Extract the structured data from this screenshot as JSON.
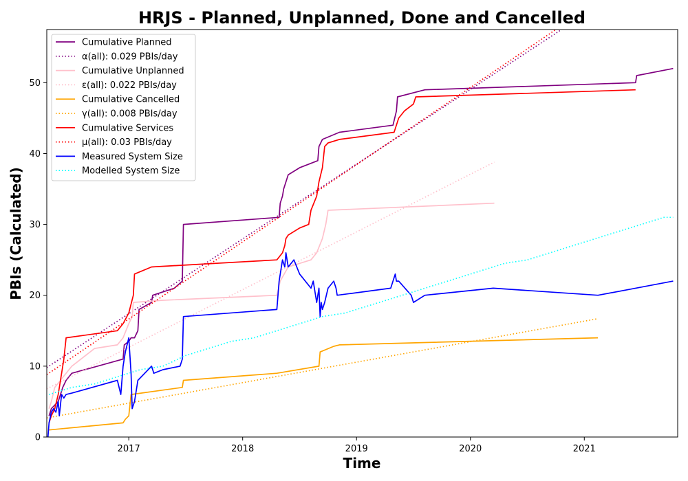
{
  "chart_data": {
    "type": "line",
    "title": "HRJS - Planned, Unplanned, Done  and Cancelled",
    "xlabel": "Time",
    "ylabel": "PBIs (Calculated)",
    "xlim": [
      2016.28,
      2021.82
    ],
    "ylim": [
      0,
      57.5
    ],
    "x_ticks": [
      2017,
      2018,
      2019,
      2020,
      2021
    ],
    "y_ticks": [
      0,
      10,
      20,
      30,
      40,
      50
    ],
    "grid": false,
    "legend_position": "top-left",
    "series": [
      {
        "name": "Cumulative Planned",
        "color": "#800080",
        "style": "solid",
        "x": [
          2016.3,
          2016.32,
          2016.35,
          2016.38,
          2016.4,
          2016.42,
          2016.45,
          2016.5,
          2016.95,
          2016.96,
          2017.0,
          2017.02,
          2017.05,
          2017.08,
          2017.09,
          2017.2,
          2017.21,
          2017.4,
          2017.47,
          2017.48,
          2018.32,
          2018.33,
          2018.35,
          2018.36,
          2018.4,
          2018.5,
          2018.66,
          2018.67,
          2018.7,
          2018.85,
          2019.32,
          2019.35,
          2019.36,
          2019.6,
          2021.45,
          2021.46,
          2021.78
        ],
        "y": [
          3,
          4,
          4.5,
          5,
          6,
          7,
          8,
          9,
          11,
          13,
          13.5,
          14,
          14,
          15,
          18,
          19,
          20,
          21,
          22,
          30,
          31,
          33,
          34,
          35,
          37,
          38,
          39,
          41,
          42,
          43,
          44,
          46,
          48,
          49,
          50,
          51,
          52
        ]
      },
      {
        "name": "α(all): 0.029 PBIs/day",
        "color": "#800080",
        "style": "dotted",
        "x": [
          2016.28,
          2020.8
        ],
        "y": [
          9.8,
          57.5
        ]
      },
      {
        "name": "Cumulative Unplanned",
        "color": "#ffc0cb",
        "style": "solid",
        "x": [
          2016.3,
          2016.32,
          2016.35,
          2016.4,
          2016.45,
          2016.5,
          2016.7,
          2016.9,
          2016.95,
          2017.0,
          2017.03,
          2017.04,
          2017.3,
          2018.3,
          2018.33,
          2018.4,
          2018.6,
          2018.65,
          2018.7,
          2018.73,
          2018.74,
          2018.75,
          2020.21
        ],
        "y": [
          4,
          5,
          7,
          8,
          9,
          10,
          12.5,
          13,
          14,
          16,
          17,
          19,
          19.3,
          20,
          22,
          24,
          25,
          26,
          28,
          30,
          31,
          32,
          33
        ]
      },
      {
        "name": "ε(all): 0.022 PBIs/day",
        "color": "#ffc0cb",
        "style": "dotted",
        "x": [
          2016.28,
          2020.21
        ],
        "y": [
          6.8,
          38.8
        ]
      },
      {
        "name": "Cumulative Cancelled",
        "color": "#ffa500",
        "style": "solid",
        "x": [
          2016.3,
          2016.95,
          2016.97,
          2017.0,
          2017.02,
          2017.47,
          2017.48,
          2018.3,
          2018.67,
          2018.68,
          2018.8,
          2018.85,
          2021.12
        ],
        "y": [
          1,
          2,
          2.5,
          3,
          6,
          7,
          8,
          9,
          10,
          12,
          12.8,
          13,
          14
        ]
      },
      {
        "name": "γ(all): 0.008 PBIs/day",
        "color": "#ffa500",
        "style": "dotted",
        "x": [
          2016.28,
          2021.12
        ],
        "y": [
          2.7,
          16.7
        ]
      },
      {
        "name": "Cumulative Services",
        "color": "#ff0000",
        "style": "solid",
        "x": [
          2016.3,
          2016.32,
          2016.35,
          2016.38,
          2016.4,
          2016.42,
          2016.43,
          2016.45,
          2016.9,
          2016.95,
          2017.0,
          2017.04,
          2017.05,
          2017.2,
          2018.3,
          2018.35,
          2018.37,
          2018.38,
          2018.4,
          2018.5,
          2018.58,
          2018.6,
          2018.65,
          2018.67,
          2018.7,
          2018.72,
          2018.75,
          2018.85,
          2019.33,
          2019.37,
          2019.42,
          2019.5,
          2019.52,
          2021.45
        ],
        "y": [
          2,
          3,
          4,
          6,
          8,
          10,
          11,
          14,
          15,
          16,
          17.5,
          20,
          23,
          24,
          25,
          26,
          27,
          28,
          28.5,
          29.5,
          30,
          32,
          34,
          36,
          38,
          41,
          41.5,
          42,
          43,
          45,
          46,
          47,
          48,
          49
        ]
      },
      {
        "name": "μ(all): 0.03 PBIs/day",
        "color": "#ff0000",
        "style": "dotted",
        "x": [
          2016.28,
          2020.75
        ],
        "y": [
          8.8,
          57.5
        ]
      },
      {
        "name": "Measured System Size",
        "color": "#0000ff",
        "style": "solid",
        "x": [
          2016.29,
          2016.3,
          2016.32,
          2016.34,
          2016.36,
          2016.38,
          2016.39,
          2016.41,
          2016.43,
          2016.45,
          2016.5,
          2016.9,
          2016.93,
          2016.95,
          2016.97,
          2017.0,
          2017.02,
          2017.03,
          2017.05,
          2017.08,
          2017.2,
          2017.22,
          2017.3,
          2017.45,
          2017.47,
          2017.48,
          2018.3,
          2018.32,
          2018.35,
          2018.37,
          2018.38,
          2018.4,
          2018.45,
          2018.5,
          2018.6,
          2018.62,
          2018.65,
          2018.67,
          2018.68,
          2018.69,
          2018.7,
          2018.72,
          2018.75,
          2018.8,
          2018.82,
          2018.83,
          2019.3,
          2019.32,
          2019.34,
          2019.35,
          2019.37,
          2019.48,
          2019.5,
          2019.6,
          2020.2,
          2021.12,
          2021.45,
          2021.78
        ],
        "y": [
          0,
          2,
          3.5,
          4,
          3.5,
          5,
          3,
          6,
          5.5,
          6,
          6.2,
          8,
          6,
          10,
          12,
          14,
          9,
          4,
          5,
          8,
          10,
          9,
          9.5,
          10,
          11,
          17,
          18,
          22,
          25,
          24,
          26,
          24,
          25,
          23,
          21,
          22,
          19,
          21,
          17,
          19,
          18,
          19,
          21,
          22,
          21,
          20,
          21,
          22,
          23,
          22,
          22,
          20,
          19,
          20,
          21,
          20,
          21,
          22
        ]
      },
      {
        "name": "Modelled System Size",
        "color": "#00ffff",
        "style": "dotted",
        "x": [
          2016.3,
          2016.5,
          2016.7,
          2016.9,
          2017.1,
          2017.3,
          2017.5,
          2017.7,
          2017.9,
          2018.1,
          2018.3,
          2018.5,
          2018.7,
          2018.9,
          2019.1,
          2019.3,
          2019.5,
          2019.7,
          2019.9,
          2020.1,
          2020.3,
          2020.5,
          2020.7,
          2020.9,
          2021.1,
          2021.3,
          2021.5,
          2021.7,
          2021.78
        ],
        "y": [
          6,
          7,
          7.5,
          8.5,
          9.5,
          10,
          11.5,
          12.5,
          13.5,
          14,
          15,
          16,
          17,
          17.5,
          18.5,
          19.5,
          20.5,
          21.5,
          22.5,
          23.5,
          24.5,
          25,
          26,
          27,
          28,
          29,
          30,
          31,
          31
        ]
      }
    ]
  }
}
